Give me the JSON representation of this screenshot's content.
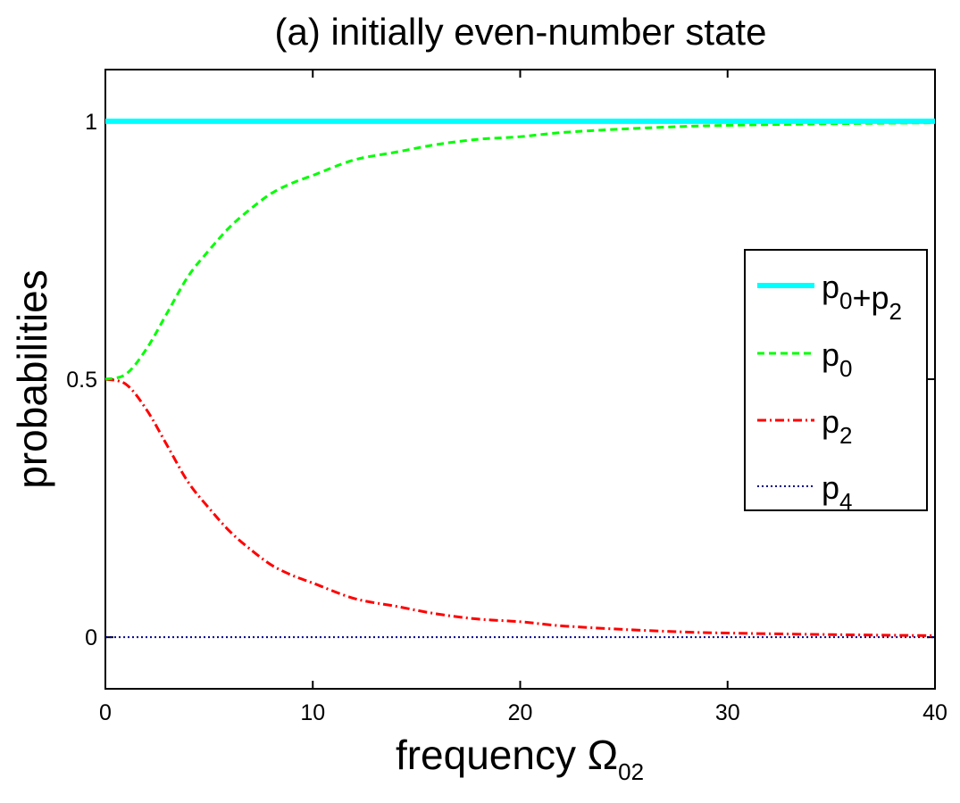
{
  "chart_data": {
    "type": "line",
    "title": "(a) initially even-number state",
    "xlabel": {
      "text": "frequency Ω",
      "subscript": "02"
    },
    "ylabel": "probabilities",
    "xlim": [
      0,
      40
    ],
    "ylim": [
      -0.1,
      1.1
    ],
    "xticks": [
      0,
      10,
      20,
      30,
      40
    ],
    "yticks": [
      0,
      0.5,
      1
    ],
    "ytick_labels": [
      "0",
      "0.5",
      "1"
    ],
    "grid": false,
    "legend_position": "right",
    "x": [
      0,
      1,
      2,
      3,
      4,
      5,
      6,
      7,
      8,
      9,
      10,
      12,
      14,
      16,
      18,
      20,
      22,
      25,
      28,
      30,
      35,
      40
    ],
    "series": [
      {
        "name": "p0+p2",
        "label_parts": [
          [
            "p",
            "0"
          ],
          [
            "+p",
            "2"
          ]
        ],
        "color": "#00ffff",
        "style": "solid",
        "values": [
          1.0,
          1.0,
          1.0,
          1.0,
          1.0,
          1.0,
          1.0,
          1.0,
          1.0,
          1.0,
          1.0,
          1.0,
          1.0,
          1.0,
          1.0,
          1.0,
          1.0,
          1.0,
          1.0,
          1.0,
          1.0,
          1.0
        ]
      },
      {
        "name": "p0",
        "label_parts": [
          [
            "p",
            "0"
          ]
        ],
        "color": "#00ff00",
        "style": "dashed",
        "values": [
          0.5,
          0.51,
          0.56,
          0.63,
          0.7,
          0.75,
          0.795,
          0.83,
          0.86,
          0.88,
          0.895,
          0.925,
          0.94,
          0.955,
          0.965,
          0.97,
          0.978,
          0.985,
          0.99,
          0.992,
          0.995,
          0.997
        ]
      },
      {
        "name": "p2",
        "label_parts": [
          [
            "p",
            "2"
          ]
        ],
        "color": "#ff0000",
        "style": "dashdot",
        "values": [
          0.5,
          0.49,
          0.44,
          0.37,
          0.3,
          0.25,
          0.205,
          0.17,
          0.14,
          0.12,
          0.105,
          0.075,
          0.06,
          0.045,
          0.035,
          0.03,
          0.022,
          0.015,
          0.01,
          0.008,
          0.005,
          0.003
        ]
      },
      {
        "name": "p4",
        "label_parts": [
          [
            "p",
            "4"
          ]
        ],
        "color": "#00008b",
        "style": "dotted",
        "values": [
          0,
          0,
          0,
          0,
          0,
          0,
          0,
          0,
          0,
          0,
          0,
          0,
          0,
          0,
          0,
          0,
          0,
          0,
          0,
          0,
          0,
          0
        ]
      }
    ]
  }
}
